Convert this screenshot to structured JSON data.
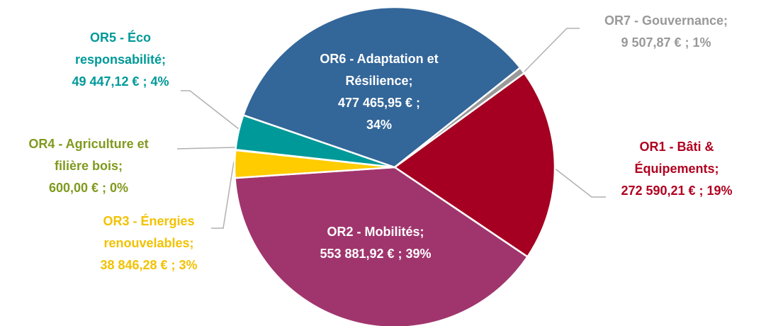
{
  "chart_data": {
    "type": "pie",
    "categories": [
      "OR1 - Bâti & Équipements;",
      "OR2 - Mobilités;",
      "OR3 - Énergies renouvelables;",
      "OR4 - Agriculture et filière bois;",
      "OR5 - Éco responsabilité;",
      "OR6 - Adaptation et Résilience;",
      "OR7 - Gouvernance;"
    ],
    "values": [
      272590.21,
      553881.92,
      38846.28,
      600.0,
      49447.12,
      477465.95,
      9507.87
    ],
    "value_labels": [
      "272 590,21 € ; 19%",
      "553 881,92 € ; 39%",
      "38 846,28 € ; 3%",
      "600,00 € ; 0%",
      "49 447,12 € ; 4%",
      "477 465,95 € ; 34%",
      "9 507,87 € ; 1%"
    ],
    "colors": [
      "#a50021",
      "#a0356d",
      "#ffcc00",
      "#7f9a1e",
      "#009999",
      "#336699",
      "#999999"
    ],
    "label_colors": [
      "#b00020",
      "#ffffff",
      "#f2c200",
      "#7f9a1e",
      "#009999",
      "#ffffff",
      "#999999"
    ]
  }
}
